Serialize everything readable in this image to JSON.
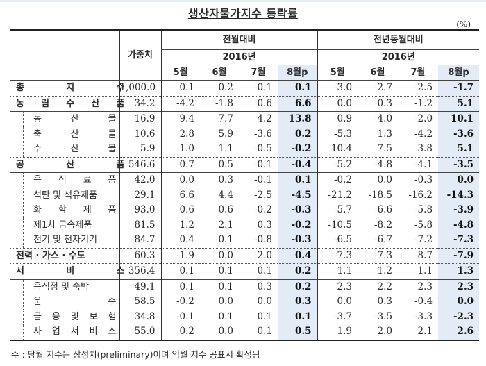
{
  "title": "생산자물가지수 등락률",
  "unit": "(%)",
  "header": {
    "weight": "가중치",
    "group_mom": "전월대비",
    "group_yoy": "전년동월대비",
    "year": "2016년",
    "months": [
      "5월",
      "6월",
      "7월",
      "8월p"
    ]
  },
  "rows": [
    {
      "label": "총지수",
      "chars": [
        "총",
        "지",
        "수"
      ],
      "level": "main",
      "weight": "1,000.0",
      "mom": [
        "0.1",
        "0.2",
        "-0.1",
        "0.1"
      ],
      "yoy": [
        "-3.0",
        "-2.7",
        "-2.5",
        "-1.7"
      ]
    },
    {
      "label": "농림수산품",
      "chars": [
        "농",
        "림",
        "수",
        "산",
        "품"
      ],
      "level": "main",
      "weight": "34.2",
      "mom": [
        "-4.2",
        "-1.8",
        "0.6",
        "6.6"
      ],
      "yoy": [
        "0.0",
        "0.3",
        "-1.2",
        "5.1"
      ]
    },
    {
      "label": "농산물",
      "chars": [
        "농",
        "산",
        "물"
      ],
      "level": "sub",
      "weight": "16.9",
      "mom": [
        "-9.4",
        "-7.7",
        "4.2",
        "13.8"
      ],
      "yoy": [
        "-0.9",
        "-4.0",
        "-2.0",
        "10.1"
      ]
    },
    {
      "label": "축산물",
      "chars": [
        "축",
        "산",
        "물"
      ],
      "level": "sub",
      "weight": "10.6",
      "mom": [
        "2.8",
        "5.9",
        "-3.6",
        "0.2"
      ],
      "yoy": [
        "-5.3",
        "1.3",
        "-4.2",
        "-3.6"
      ]
    },
    {
      "label": "수산물",
      "chars": [
        "수",
        "산",
        "물"
      ],
      "level": "sub",
      "weight": "5.9",
      "mom": [
        "-1.0",
        "1.1",
        "-0.5",
        "-0.2"
      ],
      "yoy": [
        "10.4",
        "7.5",
        "3.8",
        "5.1"
      ]
    },
    {
      "label": "공산품",
      "chars": [
        "공",
        "산",
        "품"
      ],
      "level": "main",
      "weight": "546.6",
      "mom": [
        "0.7",
        "0.5",
        "-0.1",
        "-0.4"
      ],
      "yoy": [
        "-5.2",
        "-4.8",
        "-4.1",
        "-3.5"
      ]
    },
    {
      "label": "음식료품",
      "chars": [
        "음",
        "식",
        "료",
        "품"
      ],
      "level": "sub",
      "weight": "42.0",
      "mom": [
        "0.0",
        "0.3",
        "-0.1",
        "0.1"
      ],
      "yoy": [
        "-0.2",
        "0.0",
        "-0.3",
        "0.0"
      ]
    },
    {
      "label": "석탄 및 석유제품",
      "chars": [
        "석탄 및 석유제품"
      ],
      "level": "sub",
      "weight": "29.1",
      "mom": [
        "6.6",
        "4.4",
        "-2.5",
        "-4.5"
      ],
      "yoy": [
        "-21.2",
        "-18.5",
        "-16.2",
        "-14.3"
      ]
    },
    {
      "label": "화학제품",
      "chars": [
        "화",
        "학",
        "제",
        "품"
      ],
      "level": "sub",
      "weight": "93.0",
      "mom": [
        "0.6",
        "-0.6",
        "-0.2",
        "-0.3"
      ],
      "yoy": [
        "-5.7",
        "-6.6",
        "-5.8",
        "-3.9"
      ]
    },
    {
      "label": "제1차 금속제품",
      "chars": [
        "제1차 금속제품"
      ],
      "level": "sub",
      "weight": "81.5",
      "mom": [
        "1.2",
        "2.1",
        "0.3",
        "-0.2"
      ],
      "yoy": [
        "-10.5",
        "-8.2",
        "-5.8",
        "-4.8"
      ]
    },
    {
      "label": "전기 및 전자기기",
      "chars": [
        "전기 및 전자기기"
      ],
      "level": "sub",
      "weight": "84.7",
      "mom": [
        "0.4",
        "-0.1",
        "-0.8",
        "-0.3"
      ],
      "yoy": [
        "-6.5",
        "-6.7",
        "-7.2",
        "-7.3"
      ]
    },
    {
      "label": "전력·가스·수도",
      "chars": [
        "전력 · 가스 · 수도"
      ],
      "level": "main",
      "weight": "60.3",
      "mom": [
        "-1.9",
        "0.0",
        "-2.0",
        "0.4"
      ],
      "yoy": [
        "-7.3",
        "-7.3",
        "-8.7",
        "-7.9"
      ]
    },
    {
      "label": "서비스",
      "chars": [
        "서",
        "비",
        "스"
      ],
      "level": "main",
      "weight": "356.4",
      "mom": [
        "0.1",
        "0.1",
        "0.1",
        "0.2"
      ],
      "yoy": [
        "1.1",
        "1.2",
        "1.1",
        "1.3"
      ]
    },
    {
      "label": "음식점 및 숙박",
      "chars": [
        "음식점 및 숙박"
      ],
      "level": "sub",
      "weight": "49.1",
      "mom": [
        "0.1",
        "0.1",
        "0.3",
        "0.2"
      ],
      "yoy": [
        "2.3",
        "2.2",
        "2.3",
        "2.3"
      ]
    },
    {
      "label": "운수",
      "chars": [
        "운",
        "수"
      ],
      "level": "sub",
      "weight": "58.5",
      "mom": [
        "-0.2",
        "0.0",
        "0.0",
        "0.3"
      ],
      "yoy": [
        "0.0",
        "0.3",
        "-0.4",
        "0.0"
      ]
    },
    {
      "label": "금융 및 보험",
      "chars": [
        "금",
        "융",
        "및",
        "보",
        "험"
      ],
      "level": "sub",
      "weight": "34.8",
      "mom": [
        "-0.1",
        "0.1",
        "0.1",
        "0.1"
      ],
      "yoy": [
        "-3.7",
        "-3.5",
        "-3.3",
        "-2.3"
      ]
    },
    {
      "label": "사업서비스",
      "chars": [
        "사",
        "업",
        "서",
        "비",
        "스"
      ],
      "level": "sub",
      "weight": "55.0",
      "mom": [
        "0.2",
        "0.0",
        "0.1",
        "0.5"
      ],
      "yoy": [
        "1.9",
        "2.0",
        "2.1",
        "2.6"
      ]
    }
  ],
  "note": "주 : 당월 지수는 잠정치(preliminary)이며 익월 지수 공표시 확정됨",
  "colors": {
    "highlight": "#e2ebf6",
    "rule": "#222222"
  }
}
